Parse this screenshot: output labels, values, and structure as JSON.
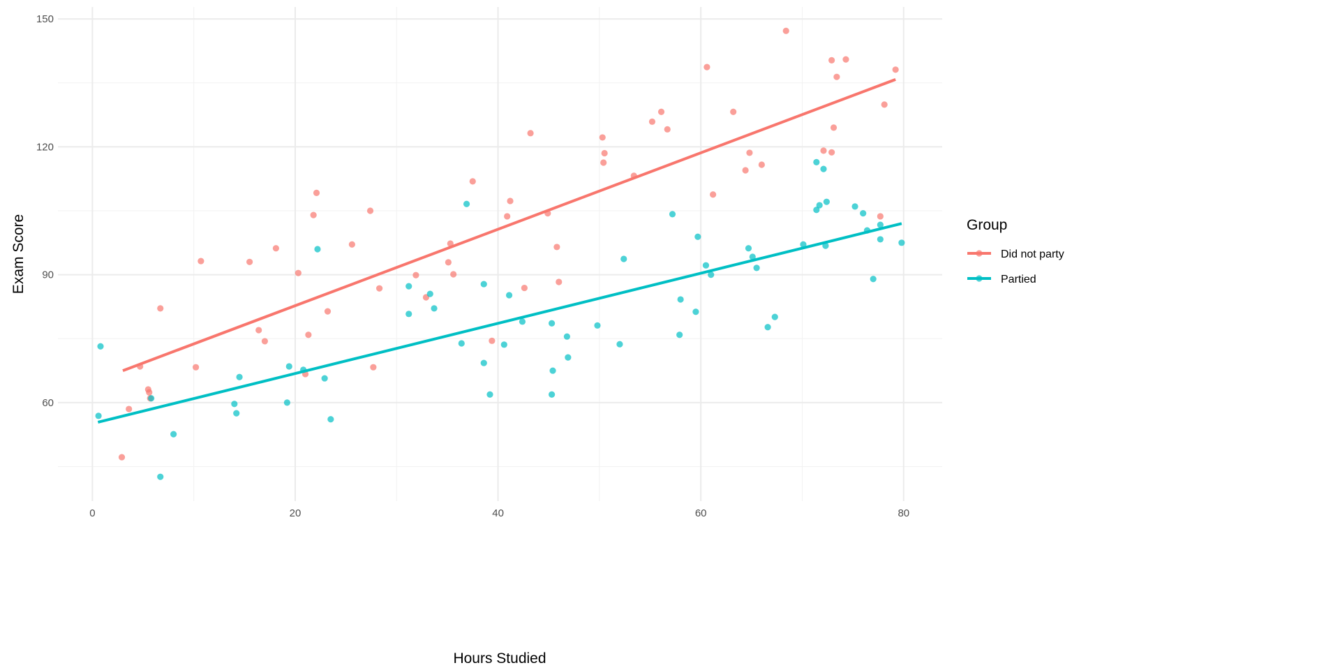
{
  "chart_data": {
    "type": "scatter",
    "title": "",
    "xlabel": "Hours Studied",
    "ylabel": "Exam Score",
    "xlim": [
      -3.4,
      83.8
    ],
    "ylim": [
      36.9,
      152.8
    ],
    "xticks": [
      0,
      20,
      40,
      60,
      80
    ],
    "yticks": [
      60,
      90,
      120,
      150
    ],
    "grid": true,
    "legend": {
      "title": "Group",
      "placement": "right"
    },
    "series": [
      {
        "name": "Did not party",
        "color": "#F8766D",
        "points": [
          [
            2.9,
            47.2
          ],
          [
            3.6,
            58.5
          ],
          [
            4.7,
            68.5
          ],
          [
            5.5,
            63.1
          ],
          [
            5.6,
            62.4
          ],
          [
            5.7,
            61.0
          ],
          [
            6.7,
            82.1
          ],
          [
            10.2,
            68.3
          ],
          [
            10.7,
            93.2
          ],
          [
            15.5,
            93.0
          ],
          [
            16.4,
            77.0
          ],
          [
            17.0,
            74.4
          ],
          [
            18.1,
            96.2
          ],
          [
            20.3,
            90.4
          ],
          [
            21.0,
            66.7
          ],
          [
            21.3,
            75.9
          ],
          [
            21.8,
            104.0
          ],
          [
            22.1,
            109.2
          ],
          [
            23.2,
            81.4
          ],
          [
            25.6,
            97.1
          ],
          [
            27.4,
            105.0
          ],
          [
            27.7,
            68.3
          ],
          [
            28.3,
            86.8
          ],
          [
            31.9,
            89.9
          ],
          [
            32.9,
            84.7
          ],
          [
            35.1,
            92.9
          ],
          [
            35.3,
            97.3
          ],
          [
            35.6,
            90.1
          ],
          [
            37.5,
            111.9
          ],
          [
            39.4,
            74.5
          ],
          [
            40.9,
            103.7
          ],
          [
            41.2,
            107.3
          ],
          [
            42.6,
            86.9
          ],
          [
            43.2,
            123.2
          ],
          [
            44.9,
            104.4
          ],
          [
            45.8,
            96.5
          ],
          [
            46.0,
            88.3
          ],
          [
            50.3,
            122.2
          ],
          [
            50.5,
            118.5
          ],
          [
            50.4,
            116.3
          ],
          [
            53.4,
            113.2
          ],
          [
            55.2,
            125.9
          ],
          [
            56.1,
            128.2
          ],
          [
            56.7,
            124.1
          ],
          [
            60.6,
            138.7
          ],
          [
            61.2,
            108.8
          ],
          [
            63.2,
            128.2
          ],
          [
            64.4,
            114.5
          ],
          [
            64.8,
            118.6
          ],
          [
            66.0,
            115.8
          ],
          [
            68.4,
            147.2
          ],
          [
            72.1,
            119.1
          ],
          [
            72.9,
            118.7
          ],
          [
            72.9,
            140.3
          ],
          [
            73.1,
            124.5
          ],
          [
            73.4,
            136.4
          ],
          [
            74.3,
            140.5
          ],
          [
            77.7,
            103.7
          ],
          [
            78.1,
            129.9
          ],
          [
            79.2,
            138.1
          ]
        ],
        "fit": [
          [
            3.0,
            67.5
          ],
          [
            79.2,
            135.8
          ]
        ]
      },
      {
        "name": "Partied",
        "color": "#00BFC4",
        "points": [
          [
            0.6,
            56.9
          ],
          [
            0.8,
            73.2
          ],
          [
            5.8,
            61.0
          ],
          [
            6.7,
            42.6
          ],
          [
            8.0,
            52.6
          ],
          [
            14.0,
            59.7
          ],
          [
            14.2,
            57.5
          ],
          [
            14.5,
            66.0
          ],
          [
            19.2,
            60.0
          ],
          [
            19.4,
            68.5
          ],
          [
            20.8,
            67.7
          ],
          [
            22.2,
            96.0
          ],
          [
            22.9,
            65.7
          ],
          [
            23.5,
            56.1
          ],
          [
            31.2,
            80.8
          ],
          [
            31.2,
            87.3
          ],
          [
            33.3,
            85.5
          ],
          [
            33.7,
            82.1
          ],
          [
            36.4,
            73.9
          ],
          [
            36.9,
            106.6
          ],
          [
            38.6,
            87.8
          ],
          [
            38.6,
            69.3
          ],
          [
            39.2,
            61.9
          ],
          [
            40.6,
            73.6
          ],
          [
            41.1,
            85.2
          ],
          [
            42.4,
            79.0
          ],
          [
            45.3,
            78.6
          ],
          [
            45.4,
            67.5
          ],
          [
            45.3,
            61.9
          ],
          [
            46.8,
            75.5
          ],
          [
            46.9,
            70.6
          ],
          [
            49.8,
            78.1
          ],
          [
            52.0,
            73.7
          ],
          [
            52.4,
            93.7
          ],
          [
            57.2,
            104.2
          ],
          [
            57.9,
            75.9
          ],
          [
            58.0,
            84.2
          ],
          [
            59.5,
            81.3
          ],
          [
            59.7,
            98.9
          ],
          [
            60.5,
            92.2
          ],
          [
            61.0,
            90.0
          ],
          [
            64.7,
            96.2
          ],
          [
            65.1,
            94.2
          ],
          [
            65.5,
            91.6
          ],
          [
            66.6,
            77.7
          ],
          [
            67.3,
            80.1
          ],
          [
            70.1,
            97.1
          ],
          [
            71.4,
            116.4
          ],
          [
            71.4,
            105.2
          ],
          [
            71.7,
            106.3
          ],
          [
            72.1,
            114.8
          ],
          [
            72.4,
            107.1
          ],
          [
            72.3,
            96.8
          ],
          [
            75.2,
            106.0
          ],
          [
            76.0,
            104.4
          ],
          [
            76.4,
            100.4
          ],
          [
            77.0,
            89.0
          ],
          [
            77.7,
            101.7
          ],
          [
            77.7,
            98.3
          ],
          [
            79.8,
            97.5
          ]
        ],
        "fit": [
          [
            0.55,
            55.4
          ],
          [
            79.8,
            102.0
          ]
        ]
      }
    ]
  }
}
